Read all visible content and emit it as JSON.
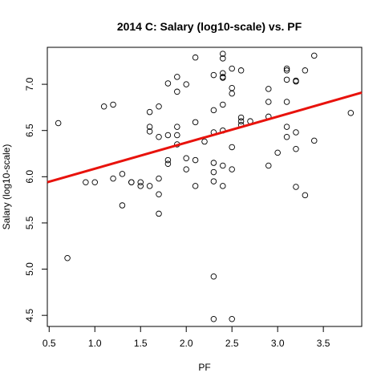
{
  "chart_data": {
    "type": "scatter",
    "title": "2014 C: Salary (log10-scale) vs. PF",
    "xlabel": "PF",
    "ylabel": "Salary (log10-scale)",
    "xlim": [
      0.48,
      3.92
    ],
    "ylim": [
      4.38,
      7.4
    ],
    "x_ticks": [
      0.5,
      1.0,
      1.5,
      2.0,
      2.5,
      3.0,
      3.5
    ],
    "x_tick_labels": [
      "0.5",
      "1.0",
      "1.5",
      "2.0",
      "2.5",
      "3.0",
      "3.5"
    ],
    "y_ticks": [
      4.5,
      5.0,
      5.5,
      6.0,
      6.5,
      7.0
    ],
    "y_tick_labels": [
      "4.5",
      "5.0",
      "5.5",
      "6.0",
      "6.5",
      "7.0"
    ],
    "fit_line": {
      "color": "#e8120c",
      "x": [
        0.48,
        3.92
      ],
      "y": [
        5.94,
        6.91
      ]
    },
    "points": [
      {
        "x": 0.6,
        "y": 6.58
      },
      {
        "x": 0.7,
        "y": 5.12
      },
      {
        "x": 0.9,
        "y": 5.94
      },
      {
        "x": 1.0,
        "y": 5.94
      },
      {
        "x": 1.1,
        "y": 6.76
      },
      {
        "x": 1.2,
        "y": 6.78
      },
      {
        "x": 1.2,
        "y": 5.98
      },
      {
        "x": 1.3,
        "y": 6.03
      },
      {
        "x": 1.3,
        "y": 5.69
      },
      {
        "x": 1.4,
        "y": 5.94
      },
      {
        "x": 1.4,
        "y": 5.94
      },
      {
        "x": 1.5,
        "y": 5.9
      },
      {
        "x": 1.5,
        "y": 5.94
      },
      {
        "x": 1.6,
        "y": 6.7
      },
      {
        "x": 1.6,
        "y": 6.54
      },
      {
        "x": 1.6,
        "y": 6.49
      },
      {
        "x": 1.6,
        "y": 5.9
      },
      {
        "x": 1.7,
        "y": 6.76
      },
      {
        "x": 1.7,
        "y": 6.43
      },
      {
        "x": 1.7,
        "y": 5.98
      },
      {
        "x": 1.7,
        "y": 5.81
      },
      {
        "x": 1.7,
        "y": 5.6
      },
      {
        "x": 1.8,
        "y": 7.01
      },
      {
        "x": 1.8,
        "y": 6.45
      },
      {
        "x": 1.8,
        "y": 6.18
      },
      {
        "x": 1.8,
        "y": 6.14
      },
      {
        "x": 1.9,
        "y": 7.08
      },
      {
        "x": 1.9,
        "y": 6.92
      },
      {
        "x": 1.9,
        "y": 6.54
      },
      {
        "x": 1.9,
        "y": 6.45
      },
      {
        "x": 1.9,
        "y": 6.35
      },
      {
        "x": 2.0,
        "y": 7.0
      },
      {
        "x": 2.0,
        "y": 6.2
      },
      {
        "x": 2.0,
        "y": 6.08
      },
      {
        "x": 2.1,
        "y": 7.29
      },
      {
        "x": 2.1,
        "y": 6.59
      },
      {
        "x": 2.1,
        "y": 6.18
      },
      {
        "x": 2.1,
        "y": 5.9
      },
      {
        "x": 2.2,
        "y": 6.38
      },
      {
        "x": 2.3,
        "y": 7.1
      },
      {
        "x": 2.3,
        "y": 6.72
      },
      {
        "x": 2.3,
        "y": 6.48
      },
      {
        "x": 2.3,
        "y": 6.15
      },
      {
        "x": 2.3,
        "y": 6.05
      },
      {
        "x": 2.3,
        "y": 5.95
      },
      {
        "x": 2.3,
        "y": 4.92
      },
      {
        "x": 2.3,
        "y": 4.46
      },
      {
        "x": 2.4,
        "y": 7.33
      },
      {
        "x": 2.4,
        "y": 7.28
      },
      {
        "x": 2.4,
        "y": 7.12
      },
      {
        "x": 2.4,
        "y": 7.08
      },
      {
        "x": 2.4,
        "y": 7.07
      },
      {
        "x": 2.4,
        "y": 6.78
      },
      {
        "x": 2.4,
        "y": 6.5
      },
      {
        "x": 2.4,
        "y": 6.12
      },
      {
        "x": 2.4,
        "y": 5.9
      },
      {
        "x": 2.5,
        "y": 7.17
      },
      {
        "x": 2.5,
        "y": 6.96
      },
      {
        "x": 2.5,
        "y": 6.9
      },
      {
        "x": 2.5,
        "y": 6.32
      },
      {
        "x": 2.5,
        "y": 6.08
      },
      {
        "x": 2.5,
        "y": 4.46
      },
      {
        "x": 2.6,
        "y": 7.15
      },
      {
        "x": 2.6,
        "y": 6.64
      },
      {
        "x": 2.6,
        "y": 6.6
      },
      {
        "x": 2.6,
        "y": 6.56
      },
      {
        "x": 2.7,
        "y": 6.6
      },
      {
        "x": 2.9,
        "y": 6.95
      },
      {
        "x": 2.9,
        "y": 6.81
      },
      {
        "x": 2.9,
        "y": 6.65
      },
      {
        "x": 2.9,
        "y": 6.12
      },
      {
        "x": 3.0,
        "y": 6.26
      },
      {
        "x": 3.1,
        "y": 7.17
      },
      {
        "x": 3.1,
        "y": 7.15
      },
      {
        "x": 3.1,
        "y": 7.05
      },
      {
        "x": 3.1,
        "y": 6.81
      },
      {
        "x": 3.1,
        "y": 6.54
      },
      {
        "x": 3.1,
        "y": 6.43
      },
      {
        "x": 3.2,
        "y": 7.04
      },
      {
        "x": 3.2,
        "y": 7.03
      },
      {
        "x": 3.2,
        "y": 6.48
      },
      {
        "x": 3.2,
        "y": 6.3
      },
      {
        "x": 3.2,
        "y": 5.89
      },
      {
        "x": 3.3,
        "y": 7.15
      },
      {
        "x": 3.3,
        "y": 5.8
      },
      {
        "x": 3.4,
        "y": 7.31
      },
      {
        "x": 3.4,
        "y": 6.39
      },
      {
        "x": 3.8,
        "y": 6.69
      }
    ]
  }
}
